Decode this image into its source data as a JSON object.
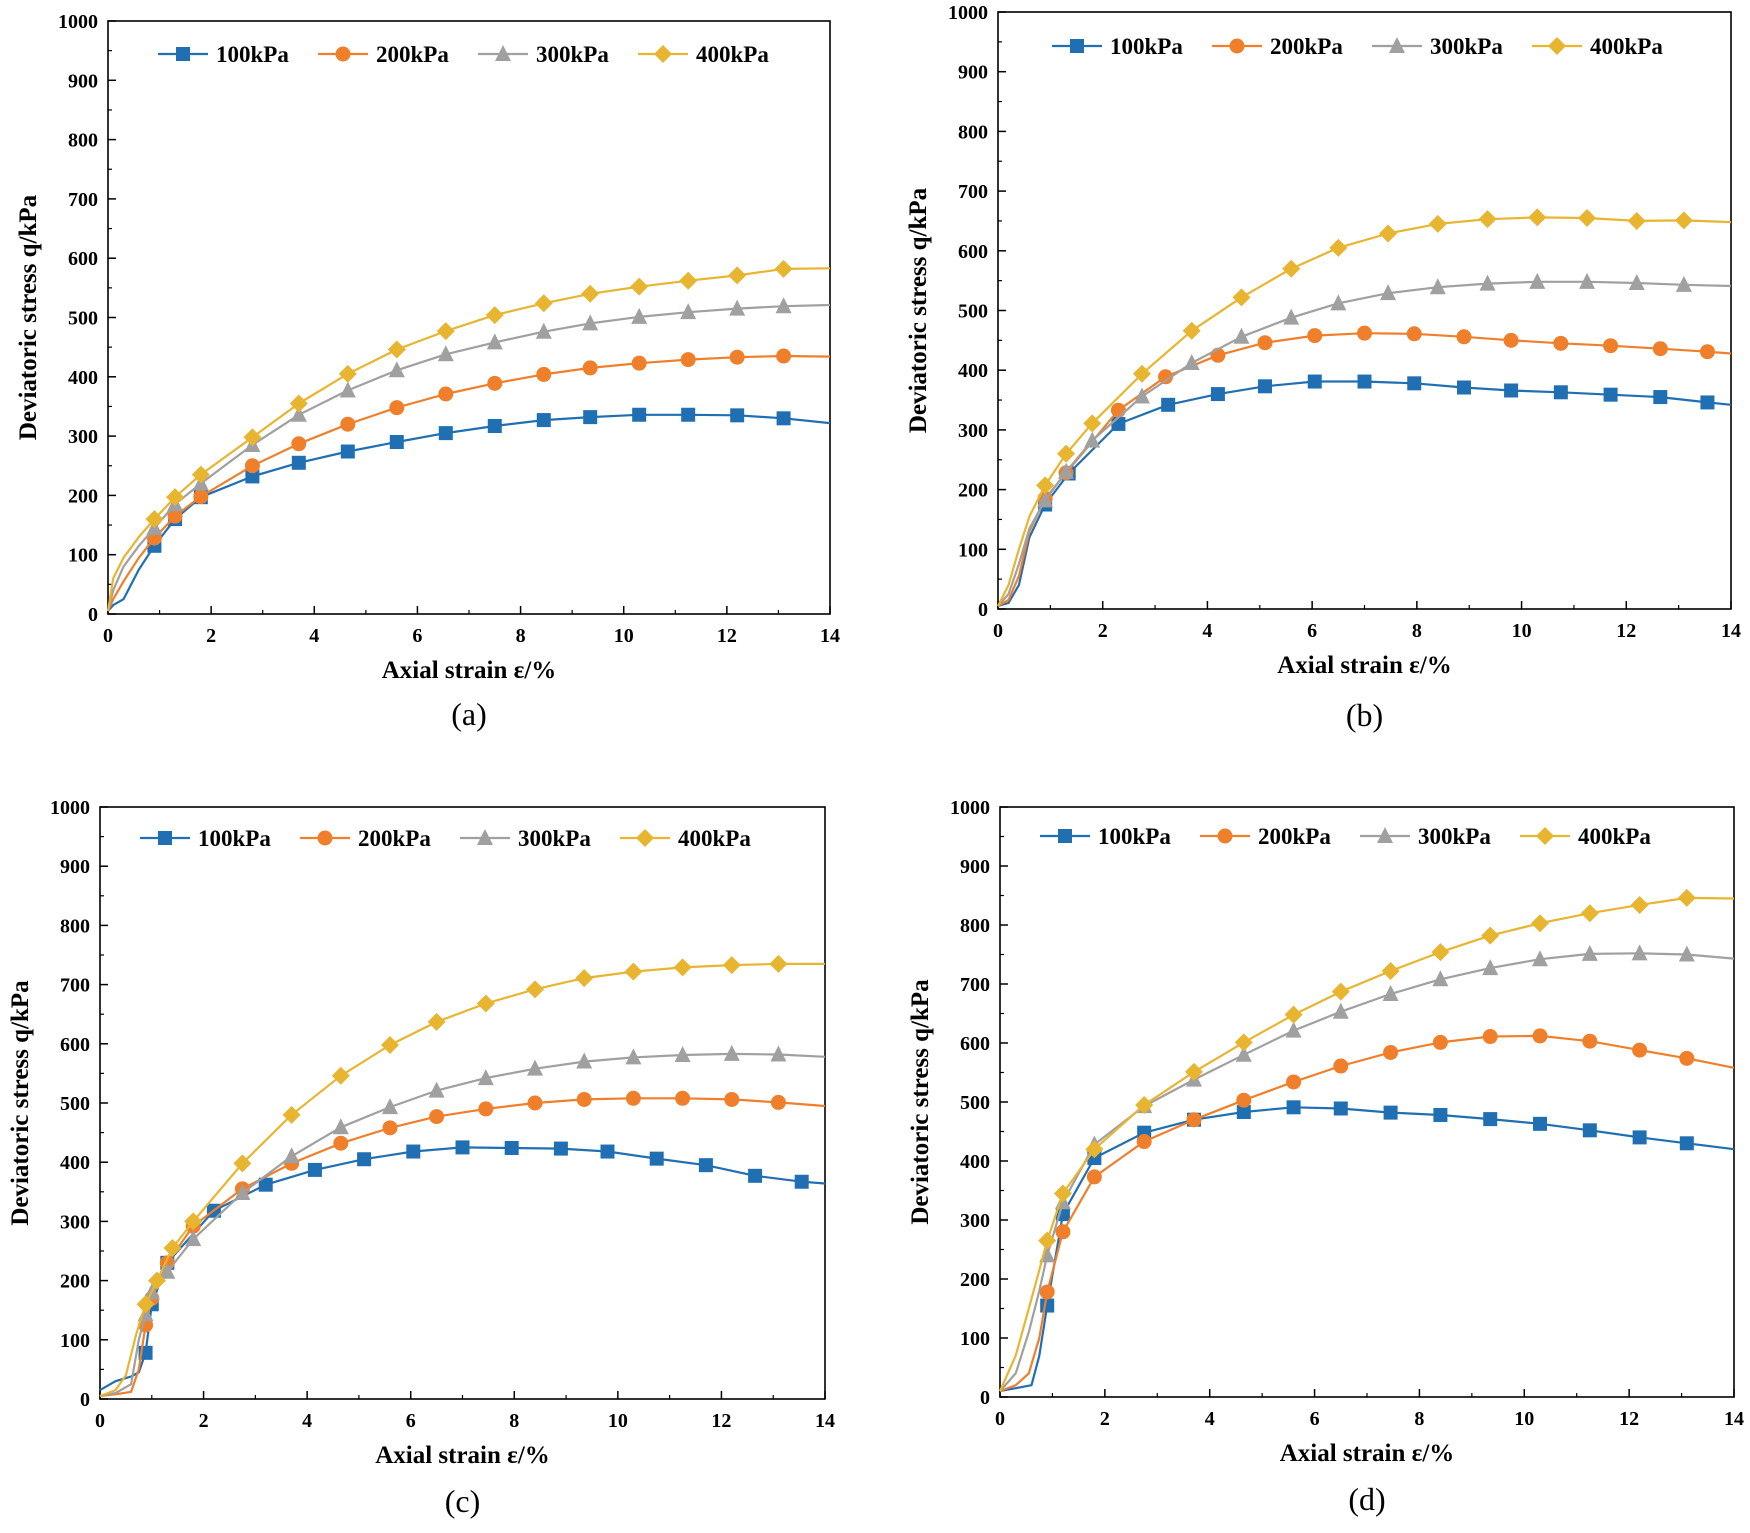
{
  "series_colors": {
    "100kPa": "#1f6fb2",
    "200kPa": "#f07f2c",
    "300kPa": "#a0a0a0",
    "400kPa": "#e8b531"
  },
  "chart_data": [
    {
      "type": "line",
      "caption": "(a)",
      "xlabel": "Axial strain ε/%",
      "ylabel": "Deviatoric stress q/kPa",
      "xlim": [
        0,
        14
      ],
      "ylim": [
        0,
        1000
      ],
      "xticks": [
        "0",
        "2",
        "4",
        "6",
        "8",
        "10",
        "12",
        "14"
      ],
      "yticks": [
        "0",
        "100",
        "200",
        "300",
        "400",
        "500",
        "600",
        "700",
        "800",
        "900",
        "1000"
      ],
      "legend_position": "top",
      "series": [
        {
          "name": "100kPa",
          "marker": "square",
          "x": [
            0,
            0.1,
            0.3,
            0.6,
            0.9,
            1.3,
            1.8,
            2.8,
            3.7,
            4.65,
            5.6,
            6.55,
            7.5,
            8.45,
            9.35,
            10.3,
            11.25,
            12.2,
            13.1,
            14
          ],
          "y": [
            5,
            15,
            25,
            75,
            115,
            160,
            197,
            232,
            255,
            274,
            290,
            305,
            317,
            327,
            332,
            336,
            336,
            335,
            330,
            322
          ]
        },
        {
          "name": "200kPa",
          "marker": "circle",
          "x": [
            0,
            0.1,
            0.3,
            0.6,
            0.9,
            1.3,
            1.8,
            2.8,
            3.7,
            4.65,
            5.6,
            6.55,
            7.5,
            8.45,
            9.35,
            10.3,
            11.25,
            12.2,
            13.1,
            14
          ],
          "y": [
            5,
            25,
            55,
            95,
            128,
            165,
            198,
            250,
            287,
            320,
            348,
            371,
            389,
            404,
            415,
            423,
            429,
            433,
            435,
            434
          ]
        },
        {
          "name": "300kPa",
          "marker": "triangle",
          "x": [
            0,
            0.1,
            0.3,
            0.6,
            0.9,
            1.3,
            1.8,
            2.8,
            3.7,
            4.65,
            5.6,
            6.55,
            7.5,
            8.45,
            9.35,
            10.3,
            11.25,
            12.2,
            13.1,
            14
          ],
          "y": [
            5,
            40,
            80,
            115,
            145,
            185,
            220,
            285,
            336,
            377,
            411,
            438,
            458,
            476,
            490,
            501,
            509,
            515,
            519,
            521
          ]
        },
        {
          "name": "400kPa",
          "marker": "diamond",
          "x": [
            0,
            0.1,
            0.3,
            0.6,
            0.9,
            1.3,
            1.8,
            2.8,
            3.7,
            4.65,
            5.6,
            6.55,
            7.5,
            8.45,
            9.35,
            10.3,
            11.25,
            12.2,
            13.1,
            14
          ],
          "y": [
            5,
            60,
            95,
            130,
            160,
            197,
            235,
            298,
            355,
            405,
            446,
            477,
            504,
            524,
            540,
            552,
            562,
            571,
            582,
            583
          ]
        }
      ]
    },
    {
      "type": "line",
      "caption": "(b)",
      "xlabel": "Axial strain ε/%",
      "ylabel": "Deviatoric stress q/kPa",
      "xlim": [
        0,
        14
      ],
      "ylim": [
        0,
        1000
      ],
      "xticks": [
        "0",
        "2",
        "4",
        "6",
        "8",
        "10",
        "12",
        "14"
      ],
      "yticks": [
        "0",
        "100",
        "200",
        "300",
        "400",
        "500",
        "600",
        "700",
        "800",
        "900",
        "1000"
      ],
      "legend_position": "top",
      "series": [
        {
          "name": "100kPa",
          "marker": "square",
          "x": [
            0,
            0.2,
            0.4,
            0.6,
            0.9,
            1.35,
            2.3,
            3.25,
            4.2,
            5.1,
            6.05,
            7.0,
            7.95,
            8.9,
            9.8,
            10.75,
            11.7,
            12.65,
            13.55,
            14
          ],
          "y": [
            5,
            10,
            40,
            120,
            175,
            227,
            310,
            342,
            360,
            373,
            381,
            381,
            378,
            371,
            366,
            363,
            359,
            355,
            346,
            342
          ]
        },
        {
          "name": "200kPa",
          "marker": "circle",
          "x": [
            0,
            0.2,
            0.4,
            0.6,
            0.9,
            1.3,
            2.3,
            3.2,
            4.2,
            5.1,
            6.05,
            7.0,
            7.95,
            8.9,
            9.8,
            10.75,
            11.7,
            12.65,
            13.55,
            14
          ],
          "y": [
            5,
            15,
            55,
            130,
            185,
            228,
            333,
            389,
            425,
            446,
            458,
            462,
            461,
            456,
            450,
            445,
            441,
            436,
            431,
            428
          ]
        },
        {
          "name": "300kPa",
          "marker": "triangle",
          "x": [
            0,
            0.2,
            0.4,
            0.6,
            0.9,
            1.3,
            1.8,
            2.75,
            3.7,
            4.65,
            5.6,
            6.5,
            7.45,
            8.4,
            9.35,
            10.3,
            11.25,
            12.2,
            13.1,
            14
          ],
          "y": [
            5,
            25,
            75,
            135,
            182,
            230,
            282,
            356,
            412,
            456,
            488,
            512,
            529,
            539,
            545,
            548,
            548,
            546,
            543,
            541
          ]
        },
        {
          "name": "400kPa",
          "marker": "diamond",
          "x": [
            0,
            0.2,
            0.4,
            0.6,
            0.9,
            1.3,
            1.8,
            2.75,
            3.7,
            4.65,
            5.6,
            6.5,
            7.45,
            8.4,
            9.35,
            10.3,
            11.25,
            12.2,
            13.1,
            14
          ],
          "y": [
            5,
            40,
            100,
            155,
            207,
            260,
            311,
            394,
            466,
            522,
            570,
            605,
            629,
            645,
            653,
            656,
            655,
            650,
            651,
            648
          ]
        }
      ]
    },
    {
      "type": "line",
      "caption": "(c)",
      "xlabel": "Axial strain ε/%",
      "ylabel": "Deviatoric stress q/kPa",
      "xlim": [
        0,
        14
      ],
      "ylim": [
        0,
        1000
      ],
      "xticks": [
        "0",
        "2",
        "4",
        "6",
        "8",
        "10",
        "12",
        "14"
      ],
      "yticks": [
        "0",
        "100",
        "200",
        "300",
        "400",
        "500",
        "600",
        "700",
        "800",
        "900",
        "1000"
      ],
      "legend_position": "top",
      "series": [
        {
          "name": "100kPa",
          "marker": "square",
          "x": [
            0,
            0.3,
            0.6,
            0.75,
            0.88,
            1.0,
            1.3,
            2.2,
            3.2,
            4.15,
            5.1,
            6.05,
            7.0,
            7.95,
            8.9,
            9.8,
            10.75,
            11.7,
            12.65,
            13.55,
            14
          ],
          "y": [
            15,
            30,
            38,
            45,
            78,
            160,
            230,
            318,
            362,
            387,
            405,
            418,
            425,
            424,
            423,
            418,
            406,
            395,
            377,
            367,
            364
          ]
        },
        {
          "name": "200kPa",
          "marker": "circle",
          "x": [
            0,
            0.3,
            0.6,
            0.75,
            0.88,
            1.0,
            1.3,
            1.8,
            2.75,
            3.7,
            4.65,
            5.6,
            6.5,
            7.45,
            8.4,
            9.35,
            10.3,
            11.25,
            12.2,
            13.1,
            14
          ],
          "y": [
            5,
            8,
            12,
            50,
            125,
            170,
            230,
            292,
            355,
            398,
            432,
            458,
            477,
            490,
            500,
            506,
            508,
            508,
            506,
            501,
            495
          ]
        },
        {
          "name": "300kPa",
          "marker": "triangle",
          "x": [
            0,
            0.3,
            0.6,
            0.75,
            0.88,
            1.0,
            1.3,
            1.8,
            2.75,
            3.7,
            4.65,
            5.6,
            6.5,
            7.45,
            8.4,
            9.35,
            10.3,
            11.25,
            12.2,
            13.1,
            14
          ],
          "y": [
            5,
            10,
            25,
            100,
            143,
            180,
            215,
            270,
            348,
            410,
            459,
            493,
            521,
            542,
            558,
            570,
            577,
            581,
            583,
            582,
            578
          ]
        },
        {
          "name": "400kPa",
          "marker": "diamond",
          "x": [
            0,
            0.3,
            0.5,
            0.7,
            0.88,
            1.1,
            1.4,
            1.8,
            2.75,
            3.7,
            4.65,
            5.6,
            6.5,
            7.45,
            8.4,
            9.35,
            10.3,
            11.25,
            12.2,
            13.1,
            14
          ],
          "y": [
            5,
            15,
            40,
            110,
            160,
            200,
            255,
            300,
            398,
            480,
            546,
            598,
            637,
            668,
            692,
            711,
            722,
            729,
            733,
            735,
            735
          ]
        }
      ]
    },
    {
      "type": "line",
      "caption": "(d)",
      "xlabel": "Axial strain ε/%",
      "ylabel": "Deviatoric stress q/kPa",
      "xlim": [
        0,
        14
      ],
      "ylim": [
        0,
        1000
      ],
      "xticks": [
        "0",
        "2",
        "4",
        "6",
        "8",
        "10",
        "12",
        "14"
      ],
      "yticks": [
        "0",
        "100",
        "200",
        "300",
        "400",
        "500",
        "600",
        "700",
        "800",
        "900",
        "1000"
      ],
      "legend_position": "top",
      "series": [
        {
          "name": "100kPa",
          "marker": "square",
          "x": [
            0,
            0.3,
            0.6,
            0.75,
            0.9,
            1.2,
            1.8,
            2.75,
            3.7,
            4.65,
            5.6,
            6.5,
            7.45,
            8.4,
            9.35,
            10.3,
            11.25,
            12.2,
            13.1,
            14
          ],
          "y": [
            10,
            15,
            20,
            70,
            155,
            310,
            405,
            448,
            470,
            483,
            491,
            489,
            482,
            478,
            471,
            463,
            452,
            440,
            430,
            420
          ]
        },
        {
          "name": "200kPa",
          "marker": "circle",
          "x": [
            0,
            0.3,
            0.55,
            0.75,
            0.9,
            1.2,
            1.8,
            2.75,
            3.7,
            4.65,
            5.6,
            6.5,
            7.45,
            8.4,
            9.35,
            10.3,
            11.25,
            12.2,
            13.1,
            14
          ],
          "y": [
            10,
            20,
            40,
            100,
            178,
            280,
            373,
            433,
            470,
            503,
            534,
            561,
            584,
            601,
            611,
            612,
            603,
            588,
            574,
            558
          ]
        },
        {
          "name": "300kPa",
          "marker": "triangle",
          "x": [
            0,
            0.3,
            0.55,
            0.75,
            0.9,
            1.2,
            1.8,
            2.75,
            3.7,
            4.65,
            5.6,
            6.5,
            7.45,
            8.4,
            9.35,
            10.3,
            11.25,
            12.2,
            13.1,
            14
          ],
          "y": [
            10,
            40,
            110,
            180,
            240,
            330,
            428,
            493,
            538,
            580,
            621,
            653,
            683,
            708,
            727,
            742,
            751,
            752,
            750,
            743
          ]
        },
        {
          "name": "400kPa",
          "marker": "diamond",
          "x": [
            0,
            0.3,
            0.55,
            0.75,
            0.9,
            1.2,
            1.8,
            2.75,
            3.7,
            4.65,
            5.6,
            6.5,
            7.45,
            8.4,
            9.35,
            10.3,
            11.25,
            12.2,
            13.1,
            14
          ],
          "y": [
            10,
            70,
            150,
            215,
            265,
            345,
            420,
            495,
            551,
            601,
            648,
            687,
            722,
            754,
            782,
            803,
            820,
            834,
            846,
            845
          ]
        }
      ]
    }
  ]
}
